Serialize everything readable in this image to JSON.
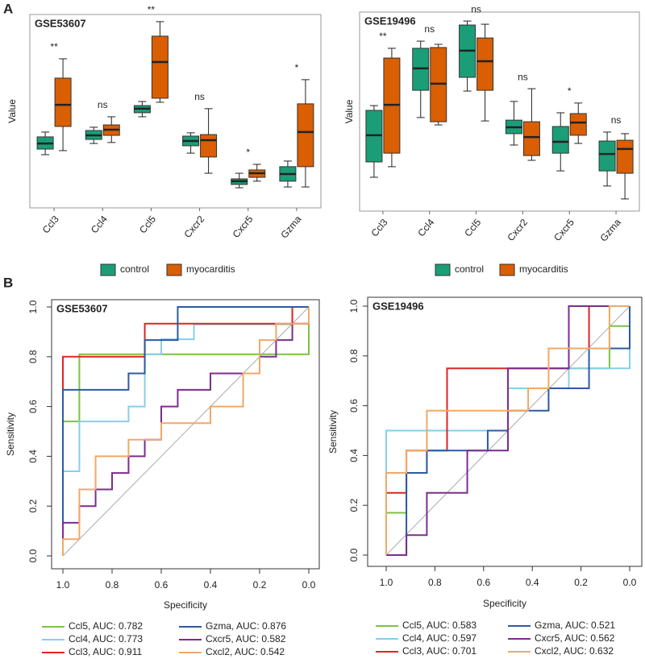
{
  "panels": [
    "A",
    "B"
  ],
  "chart_data": [
    {
      "type": "box",
      "title": "GSE53607",
      "ylabel": "Value",
      "ylim": [
        0,
        100
      ],
      "categories": [
        "Ccl3",
        "Ccl4",
        "Ccl5",
        "Cxcr2",
        "Cxcr5",
        "Gzma"
      ],
      "annotations": [
        "**",
        "ns",
        "**",
        "ns",
        "*",
        "*"
      ],
      "series": [
        {
          "name": "control",
          "color": "#1b9e77",
          "values": [
            [
              27.5,
              30.4,
              33.3,
              36.7,
              39.2
            ],
            [
              33.3,
              35.4,
              37.5,
              40,
              41.7
            ],
            [
              47.1,
              49.2,
              51.3,
              52.9,
              55
            ],
            [
              28.3,
              32.1,
              34.6,
              37.1,
              38.8
            ],
            [
              10.4,
              12.1,
              13.8,
              15,
              17.9
            ],
            [
              10.8,
              13.8,
              17.5,
              21.3,
              24.2
            ]
          ]
        },
        {
          "name": "myocarditis",
          "color": "#d95f02",
          "values": [
            [
              29.6,
              42.1,
              53.3,
              67.1,
              77.1
            ],
            [
              33.8,
              37.5,
              40.4,
              42.9,
              47.1
            ],
            [
              54.6,
              56.7,
              75.4,
              88.8,
              96.3
            ],
            [
              17.9,
              26.3,
              35,
              37.9,
              51.3
            ],
            [
              13.8,
              15.8,
              17.9,
              19.6,
              22.5
            ],
            [
              10.8,
              21.3,
              39.2,
              53.8,
              66.3
            ]
          ]
        }
      ]
    },
    {
      "type": "box",
      "title": "GSE19496",
      "ylabel": "Value",
      "ylim": [
        0,
        100
      ],
      "categories": [
        "Ccl3",
        "Ccl4",
        "Ccl5",
        "Cxcr2",
        "Cxcr5",
        "Gzma"
      ],
      "annotations": [
        "**",
        "ns",
        "ns",
        "ns",
        "*",
        "ns"
      ],
      "series": [
        {
          "name": "control",
          "color": "#1b9e77",
          "values": [
            [
              17,
              24.7,
              38.1,
              50.6,
              53
            ],
            [
              47,
              60.7,
              71.7,
              81.8,
              85.4
            ],
            [
              60.3,
              67.2,
              80.6,
              93.5,
              95.5
            ],
            [
              33.2,
              38.9,
              42.1,
              45.7,
              55.1
            ],
            [
              20.2,
              29.1,
              34.8,
              42.5,
              49.4
            ],
            [
              12.6,
              20.2,
              28.7,
              35.2,
              39.7
            ]
          ]
        },
        {
          "name": "myocarditis",
          "color": "#d95f02",
          "values": [
            [
              22.3,
              29.1,
              53.4,
              76.9,
              81.8
            ],
            [
              43.3,
              44.9,
              64,
              82.2,
              83.8
            ],
            [
              45.3,
              60.7,
              75.3,
              87,
              93.9
            ],
            [
              25.5,
              27.9,
              37.2,
              44.9,
              61.5
            ],
            [
              34,
              38.1,
              44.5,
              49,
              54.3
            ],
            [
              6.1,
              19,
              31.2,
              35.6,
              38.9
            ]
          ]
        }
      ]
    },
    {
      "type": "roc",
      "title": "GSE53607",
      "xlabel": "Specificity",
      "ylabel": "Sensitivity",
      "xlim": [
        1,
        0
      ],
      "ylim": [
        0,
        1
      ],
      "xticks": [
        {
          "value": 1,
          "label": "1.0"
        },
        0.8,
        0.6,
        0.4,
        0.2,
        {
          "value": 0,
          "label": "0.0"
        }
      ],
      "yticks": [
        {
          "value": 0,
          "label": "0.0"
        },
        0.2,
        0.4,
        0.6,
        0.8,
        {
          "value": 1,
          "label": "1.0"
        }
      ],
      "series": [
        {
          "name": "Ccl5, AUC: 0.782",
          "color": "#7cc242",
          "x": [
            1,
            1,
            0.933,
            0.933,
            0,
            0
          ],
          "values": [
            0,
            0.54,
            0.54,
            0.81,
            0.81,
            1
          ]
        },
        {
          "name": "Ccl4, AUC: 0.773",
          "color": "#87ceeb",
          "x": [
            1,
            1,
            0.933,
            0.933,
            0.733,
            0.733,
            0.667,
            0.667,
            0.6,
            0.6,
            0.467,
            0.467,
            0.067,
            0.067,
            0
          ],
          "values": [
            0,
            0.34,
            0.34,
            0.54,
            0.54,
            0.6,
            0.6,
            0.81,
            0.81,
            0.87,
            0.87,
            0.93,
            0.93,
            1,
            1
          ]
        },
        {
          "name": "Ccl3, AUC: 0.911",
          "color": "#e02424",
          "x": [
            1,
            1,
            0.667,
            0.667,
            0.067,
            0.067,
            0
          ],
          "values": [
            0,
            0.8,
            0.8,
            0.933,
            0.933,
            1,
            1
          ]
        },
        {
          "name": "Gzma, AUC: 0.876",
          "color": "#2c5aa0",
          "x": [
            1,
            1,
            0.733,
            0.733,
            0.667,
            0.667,
            0.533,
            0.533,
            0
          ],
          "values": [
            0,
            0.667,
            0.667,
            0.733,
            0.733,
            0.867,
            0.867,
            1,
            1
          ]
        },
        {
          "name": "Cxcr5, AUC: 0.582",
          "color": "#7b2d8e",
          "x": [
            1,
            1,
            0.933,
            0.933,
            0.867,
            0.867,
            0.8,
            0.8,
            0.733,
            0.733,
            0.667,
            0.667,
            0.6,
            0.6,
            0.533,
            0.533,
            0.4,
            0.4,
            0.2,
            0.2,
            0.133,
            0.133,
            0.067,
            0.067,
            0,
            0
          ],
          "values": [
            0,
            0.133,
            0.133,
            0.2,
            0.2,
            0.267,
            0.267,
            0.333,
            0.333,
            0.4,
            0.4,
            0.467,
            0.467,
            0.6,
            0.6,
            0.667,
            0.667,
            0.733,
            0.733,
            0.8,
            0.8,
            0.867,
            0.867,
            0.933,
            0.933,
            1
          ]
        },
        {
          "name": "Cxcl2, AUC: 0.542",
          "color": "#f0a868",
          "x": [
            1,
            1,
            0.933,
            0.933,
            0.867,
            0.867,
            0.733,
            0.733,
            0.6,
            0.6,
            0.4,
            0.4,
            0.267,
            0.267,
            0.2,
            0.2,
            0.133,
            0.133,
            0,
            0
          ],
          "values": [
            0,
            0.067,
            0.067,
            0.267,
            0.267,
            0.4,
            0.4,
            0.467,
            0.467,
            0.533,
            0.533,
            0.6,
            0.6,
            0.733,
            0.733,
            0.867,
            0.867,
            0.933,
            0.933,
            1
          ]
        }
      ]
    },
    {
      "type": "roc",
      "title": "GSE19496",
      "xlabel": "Specificity",
      "ylabel": "Sensitivity",
      "xlim": [
        1,
        0
      ],
      "ylim": [
        0,
        1
      ],
      "xticks": [
        {
          "value": 1,
          "label": "1.0"
        },
        0.8,
        0.6,
        0.4,
        0.2,
        {
          "value": 0,
          "label": "0.0"
        }
      ],
      "yticks": [
        {
          "value": 0,
          "label": "0.0"
        },
        0.2,
        0.4,
        0.6,
        0.8,
        {
          "value": 1,
          "label": "1.0"
        }
      ],
      "series": [
        {
          "name": "Ccl5, AUC: 0.583",
          "color": "#7cc242",
          "x": [
            1,
            1,
            0.917,
            0.917,
            0.833,
            0.833,
            0.5,
            0.5,
            0.083,
            0.083,
            0,
            0
          ],
          "values": [
            0,
            0.17,
            0.17,
            0.33,
            0.33,
            0.5,
            0.5,
            0.75,
            0.75,
            0.92,
            0.92,
            1
          ]
        },
        {
          "name": "Ccl4, AUC: 0.597",
          "color": "#87ceeb",
          "x": [
            1,
            1,
            0.5,
            0.5,
            0.25,
            0.25,
            0.167,
            0.167,
            0,
            0
          ],
          "values": [
            0,
            0.5,
            0.5,
            0.67,
            0.67,
            0.75,
            0.75,
            0.75,
            0.75,
            1
          ]
        },
        {
          "name": "Ccl3, AUC: 0.701",
          "color": "#e02424",
          "x": [
            1,
            1,
            0.917,
            0.917,
            0.75,
            0.75,
            0.25,
            0.25,
            0.167,
            0.167,
            0
          ],
          "values": [
            0,
            0.25,
            0.25,
            0.42,
            0.42,
            0.75,
            0.75,
            0.83,
            0.83,
            1,
            1
          ]
        },
        {
          "name": "Gzma, AUC: 0.521",
          "color": "#2c5aa0",
          "x": [
            1,
            0.917,
            0.917,
            0.833,
            0.833,
            0.583,
            0.583,
            0.5,
            0.5,
            0.333,
            0.333,
            0.167,
            0.167,
            0,
            0
          ],
          "values": [
            0,
            0,
            0.33,
            0.33,
            0.42,
            0.42,
            0.5,
            0.5,
            0.58,
            0.58,
            0.67,
            0.67,
            0.83,
            0.83,
            1
          ]
        },
        {
          "name": "Cxcr5, AUC: 0.562",
          "color": "#7b2d8e",
          "x": [
            1,
            0.917,
            0.917,
            0.833,
            0.833,
            0.667,
            0.667,
            0.5,
            0.5,
            0.25,
            0.25,
            0
          ],
          "values": [
            0,
            0,
            0.08,
            0.08,
            0.25,
            0.25,
            0.42,
            0.42,
            0.75,
            0.75,
            1,
            1
          ]
        },
        {
          "name": "Cxcl2, AUC: 0.632",
          "color": "#f0a868",
          "x": [
            1,
            1,
            0.917,
            0.917,
            0.833,
            0.833,
            0.417,
            0.417,
            0.333,
            0.333,
            0.083,
            0.083,
            0
          ],
          "values": [
            0,
            0.33,
            0.33,
            0.42,
            0.42,
            0.58,
            0.58,
            0.67,
            0.67,
            0.83,
            0.83,
            1,
            1
          ]
        }
      ]
    }
  ]
}
